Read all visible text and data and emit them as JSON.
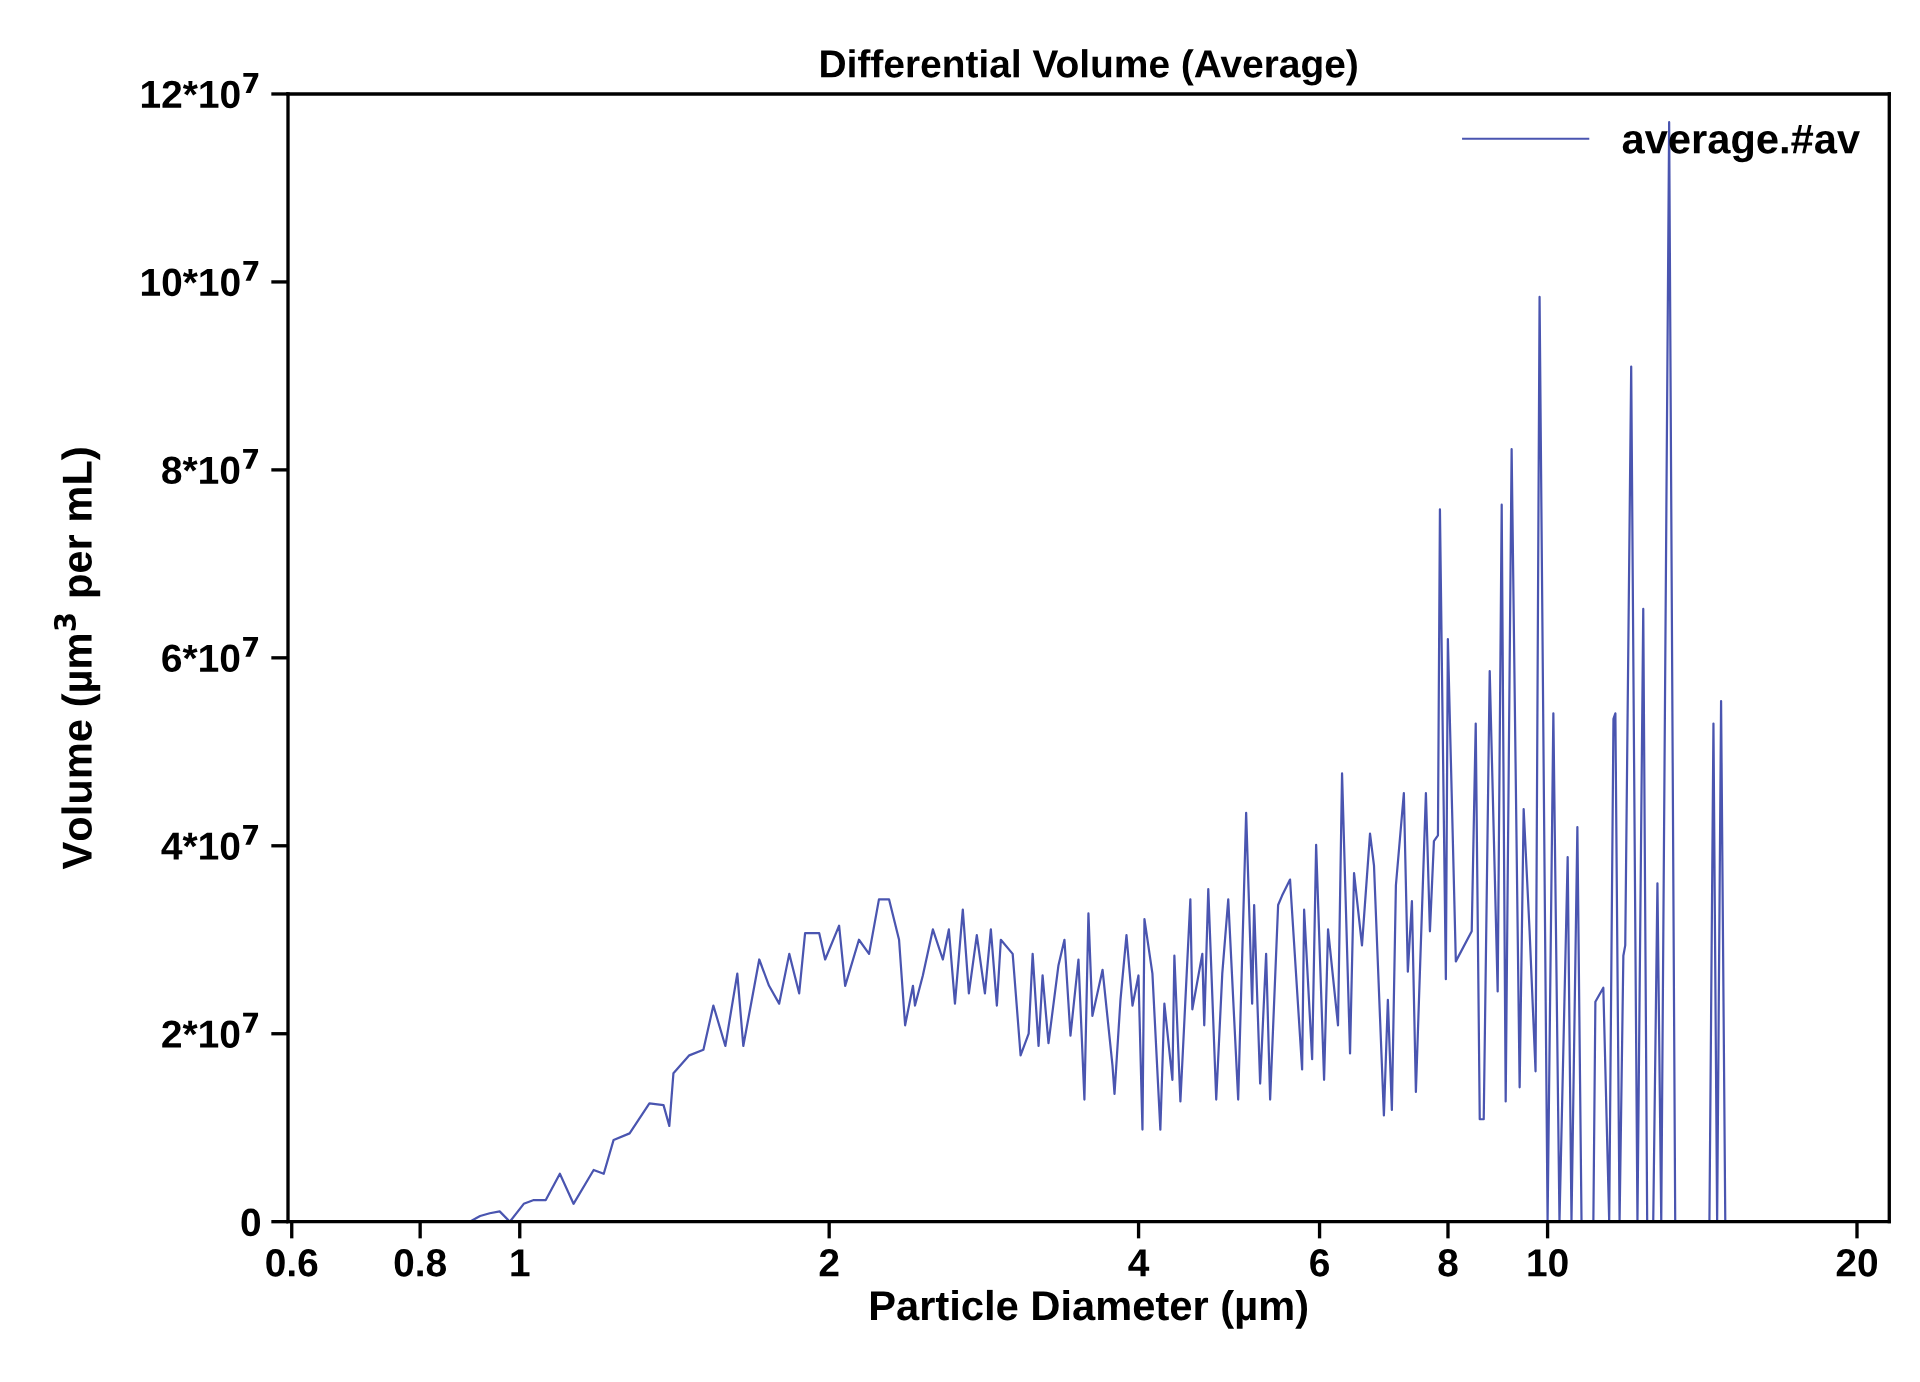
{
  "chart_data": {
    "type": "line",
    "title": "Differential Volume (Average)",
    "xlabel": "Particle Diameter (µm)",
    "ylabel": "Volume (µm$^{3}$ per mL)",
    "log": "x",
    "xlim": [
      0.595,
      21.5
    ],
    "ylim": [
      0,
      120000000
    ],
    "xticks": [
      0.6,
      0.8,
      1,
      2,
      4,
      6,
      8,
      10,
      20
    ],
    "yticks": [
      0,
      {
        "value": 20000000,
        "label": "2*10$^{7}$"
      },
      {
        "value": 40000000,
        "label": "4*10$^{7}$"
      },
      {
        "value": 60000000,
        "label": "6*10$^{7}$"
      },
      {
        "value": 80000000,
        "label": "8*10$^{7}$"
      },
      {
        "value": 100000000,
        "label": "10*10$^{7}$"
      },
      {
        "value": 120000000,
        "label": "12*10$^{7}$"
      }
    ],
    "grid": false,
    "legend": "top right",
    "marker": "none",
    "line_style": "solid",
    "series": [
      {
        "name": "average.#av",
        "color": "#4a55b0",
        "x": [
          0.894,
          0.915,
          0.935,
          0.956,
          0.978,
          1.009,
          1.032,
          1.06,
          1.094,
          1.128,
          1.18,
          1.207,
          1.234,
          1.279,
          1.337,
          1.38,
          1.398,
          1.411,
          1.462,
          1.509,
          1.543,
          1.585,
          1.628,
          1.65,
          1.71,
          1.748,
          1.788,
          1.829,
          1.87,
          1.895,
          1.956,
          1.982,
          2.045,
          2.073,
          2.138,
          2.187,
          2.236,
          2.287,
          2.339,
          2.371,
          2.413,
          2.424,
          2.467,
          2.523,
          2.58,
          2.615,
          2.651,
          2.698,
          2.735,
          2.784,
          2.835,
          2.873,
          2.912,
          2.938,
          3.017,
          3.071,
          3.127,
          3.155,
          3.197,
          3.226,
          3.269,
          3.343,
          3.388,
          3.434,
          3.496,
          3.543,
          3.575,
          3.607,
          3.69,
          3.773,
          3.79,
          3.841,
          3.893,
          3.946,
          3.999,
          4.035,
          4.053,
          4.126,
          4.2,
          4.238,
          4.315,
          4.334,
          4.393,
          4.492,
          4.512,
          4.614,
          4.634,
          4.676,
          4.76,
          4.825,
          4.89,
          5.0,
          5.09,
          5.159,
          5.182,
          5.252,
          5.323,
          5.371,
          5.468,
          5.517,
          5.616,
          5.77,
          5.796,
          5.901,
          5.954,
          6.061,
          6.115,
          6.253,
          6.31,
          6.424,
          6.482,
          6.598,
          6.718,
          6.778,
          6.93,
          6.992,
          7.055,
          7.119,
          7.247,
          7.312,
          7.379,
          7.445,
          7.614,
          7.683,
          7.752,
          7.822,
          7.857,
          7.962,
          7.998,
          8.142,
          8.437,
          8.513,
          8.59,
          8.667,
          8.784,
          8.942,
          9.023,
          9.104,
          9.226,
          9.393,
          9.478,
          9.605,
          9.734,
          9.822,
          10.0,
          10.13,
          10.27,
          10.46,
          10.55,
          10.69,
          10.79,
          11.08,
          11.13,
          11.33,
          11.48,
          11.59,
          11.64,
          11.75,
          11.85,
          11.9,
          12.06,
          12.23,
          12.39,
          12.5,
          12.67,
          12.79,
          12.9,
          13.13,
          13.31,
          14.37,
          14.5,
          14.62,
          14.75,
          14.89
        ],
        "values": [
          0,
          600000,
          900000,
          1100000,
          0,
          1900000,
          2300000,
          2300000,
          5100000,
          1900000,
          5500000,
          5100000,
          8700000,
          9400000,
          12600000,
          12400000,
          10200000,
          15800000,
          17700000,
          18300000,
          23000000,
          18700000,
          26400000,
          18700000,
          27900000,
          25100000,
          23200000,
          28500000,
          24300000,
          30700000,
          30700000,
          27900000,
          31500000,
          25100000,
          30000000,
          28500000,
          34300000,
          34300000,
          30000000,
          20900000,
          25100000,
          23000000,
          26200000,
          31100000,
          27900000,
          31100000,
          23200000,
          33200000,
          24300000,
          30500000,
          24300000,
          31100000,
          23000000,
          30000000,
          28500000,
          17700000,
          20000000,
          28500000,
          18700000,
          26200000,
          19000000,
          27300000,
          30000000,
          19800000,
          27900000,
          13000000,
          32800000,
          21900000,
          26800000,
          16600000,
          13600000,
          23600000,
          30500000,
          23000000,
          26200000,
          9800000,
          32200000,
          26400000,
          9800000,
          23200000,
          15100000,
          28300000,
          12800000,
          34300000,
          22600000,
          28500000,
          20900000,
          35400000,
          13000000,
          26400000,
          34300000,
          13000000,
          43500000,
          23200000,
          33700000,
          14700000,
          28500000,
          13000000,
          33700000,
          34700000,
          36400000,
          16200000,
          33200000,
          17300000,
          40100000,
          15100000,
          31100000,
          20900000,
          47700000,
          17900000,
          37100000,
          29400000,
          41300000,
          37900000,
          11300000,
          23600000,
          11900000,
          35800000,
          45600000,
          26600000,
          34100000,
          13800000,
          45600000,
          30900000,
          40500000,
          41100000,
          75800000,
          25800000,
          62000000,
          27700000,
          30900000,
          53000000,
          10900000,
          10900000,
          58600000,
          24500000,
          76300000,
          12800000,
          82200000,
          14300000,
          43900000,
          30900000,
          16000000,
          98400000,
          0,
          54100000,
          0,
          38800000,
          0,
          42000000,
          0,
          0,
          23400000,
          24900000,
          0,
          53500000,
          54100000,
          0,
          28300000,
          29400000,
          91000000,
          0,
          65200000,
          0,
          0,
          36000000,
          0,
          117000000,
          0,
          0,
          53000000,
          0,
          55400000,
          0
        ]
      }
    ]
  }
}
